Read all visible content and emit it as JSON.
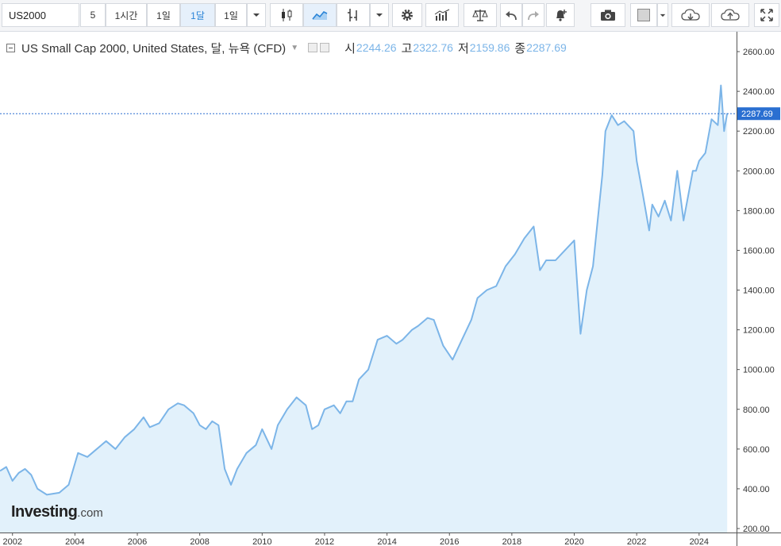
{
  "toolbar": {
    "symbol": "US2000",
    "intervals": [
      "5",
      "1시간",
      "1일",
      "1달",
      "1일"
    ],
    "active_interval_index": 3,
    "icons": [
      "chevron-down-icon",
      "candlestick-icon",
      "area-chart-icon",
      "bar-chart-icon",
      "chevron-down-icon",
      "gear-icon",
      "indicators-icon",
      "scale-icon",
      "undo-icon",
      "redo-icon",
      "add-alert-icon",
      "camera-icon",
      "color-square-icon",
      "chevron-down-icon",
      "cloud-download-icon",
      "cloud-upload-icon",
      "fullscreen-icon"
    ]
  },
  "legend": {
    "title": "US Small Cap 2000, United States, 달, 뉴욕 (CFD)",
    "open_label": "시",
    "open_value": "2244.26",
    "high_label": "고",
    "high_value": "2322.76",
    "low_label": "저",
    "low_value": "2159.86",
    "close_label": "종",
    "close_value": "2287.69"
  },
  "watermark": {
    "brand": "Investing",
    "suffix": ".com"
  },
  "colors": {
    "line": "#7cb5e8",
    "fill": "#e2f1fb",
    "axis_text": "#333333",
    "price_tag": "#2a6fd1",
    "toolbar_bg": "#f4f5f7"
  },
  "chart_data": {
    "type": "area",
    "title": "US Small Cap 2000, United States, 달, 뉴욕 (CFD)",
    "x_axis": {
      "range": [
        2001.6,
        2025.2
      ],
      "ticks": [
        "2002",
        "2004",
        "2006",
        "2008",
        "2010",
        "2012",
        "2014",
        "2016",
        "2018",
        "2020",
        "2022",
        "2024"
      ]
    },
    "y_axis": {
      "range": [
        180,
        2700
      ],
      "position": "right",
      "ticks": [
        "200.00",
        "400.00",
        "600.00",
        "800.00",
        "1000.00",
        "1200.00",
        "1400.00",
        "1600.00",
        "1800.00",
        "2000.00",
        "2200.00",
        "2400.00",
        "2600.00"
      ]
    },
    "last_price": {
      "value": 2287.69,
      "label": "2287.69"
    },
    "series": [
      {
        "x": [
          2001.6,
          2001.8,
          2002.0,
          2002.2,
          2002.4,
          2002.6,
          2002.8,
          2003.1,
          2003.5,
          2003.8,
          2004.1,
          2004.4,
          2004.7,
          2005.0,
          2005.3,
          2005.6,
          2005.9,
          2006.2,
          2006.4,
          2006.7,
          2007.0,
          2007.3,
          2007.5,
          2007.8,
          2008.0,
          2008.2,
          2008.4,
          2008.6,
          2008.8,
          2009.0,
          2009.2,
          2009.5,
          2009.8,
          2010.0,
          2010.3,
          2010.5,
          2010.8,
          2011.1,
          2011.4,
          2011.6,
          2011.8,
          2012.0,
          2012.3,
          2012.5,
          2012.7,
          2012.9,
          2013.1,
          2013.4,
          2013.7,
          2014.0,
          2014.3,
          2014.5,
          2014.8,
          2015.0,
          2015.3,
          2015.5,
          2015.8,
          2016.1,
          2016.4,
          2016.7,
          2016.9,
          2017.2,
          2017.5,
          2017.8,
          2018.1,
          2018.4,
          2018.7,
          2018.9,
          2019.1,
          2019.4,
          2019.7,
          2020.0,
          2020.2,
          2020.4,
          2020.6,
          2020.9,
          2021.0,
          2021.2,
          2021.4,
          2021.6,
          2021.9,
          2022.0,
          2022.2,
          2022.4,
          2022.5,
          2022.7,
          2022.9,
          2023.1,
          2023.3,
          2023.5,
          2023.8,
          2023.9,
          2024.0,
          2024.2,
          2024.4,
          2024.6,
          2024.7,
          2024.8,
          2024.9
        ],
        "values": [
          490,
          510,
          440,
          480,
          500,
          470,
          400,
          370,
          380,
          420,
          580,
          560,
          600,
          640,
          600,
          660,
          700,
          760,
          710,
          730,
          800,
          830,
          820,
          780,
          720,
          700,
          740,
          720,
          500,
          420,
          500,
          580,
          620,
          700,
          600,
          720,
          800,
          860,
          820,
          700,
          720,
          800,
          820,
          780,
          840,
          840,
          950,
          1000,
          1150,
          1170,
          1130,
          1150,
          1200,
          1220,
          1260,
          1250,
          1120,
          1050,
          1150,
          1250,
          1360,
          1400,
          1420,
          1520,
          1580,
          1660,
          1720,
          1500,
          1550,
          1550,
          1600,
          1650,
          1180,
          1400,
          1520,
          1980,
          2200,
          2280,
          2230,
          2250,
          2200,
          2050,
          1880,
          1700,
          1830,
          1770,
          1850,
          1750,
          2000,
          1750,
          2000,
          2000,
          2050,
          2090,
          2260,
          2230,
          2430,
          2200,
          2290
        ]
      }
    ]
  }
}
